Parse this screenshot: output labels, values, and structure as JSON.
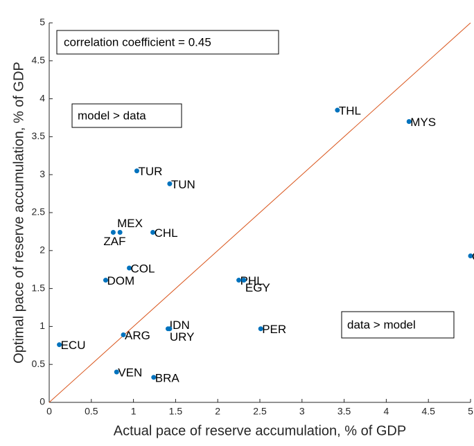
{
  "chart_data": {
    "type": "scatter",
    "xlabel": "Actual pace of reserve accumulation, % of GDP",
    "ylabel": "Optimal pace of reserve accumulation, % of GDP",
    "annotations": [
      "correlation coefficient = 0.45",
      "model > data",
      "data > model"
    ],
    "color": "#0072bd",
    "line_color": "#d95319",
    "labels": [
      "THL",
      "MYS",
      "C",
      "TUR",
      "TUN",
      "MEX",
      "ZAF",
      "CHL",
      "COL",
      "DOM",
      "PHL",
      "EGY",
      "IDN",
      "URY",
      "PER",
      "ARG",
      "ECU",
      "VEN",
      "BRA"
    ],
    "x": [
      3.42,
      4.27,
      5.0,
      1.04,
      1.43,
      0.84,
      0.76,
      1.23,
      0.95,
      0.67,
      2.25,
      2.31,
      1.41,
      1.43,
      2.51,
      0.88,
      0.12,
      0.8,
      1.24
    ],
    "values": [
      3.85,
      3.7,
      1.93,
      3.05,
      2.88,
      2.24,
      2.24,
      2.24,
      1.77,
      1.61,
      1.61,
      1.61,
      0.97,
      0.97,
      0.97,
      0.89,
      0.76,
      0.4,
      0.33
    ],
    "xlim": [
      0,
      5
    ],
    "ylim": [
      0,
      5
    ],
    "xticks": [
      0,
      0.5,
      1,
      1.5,
      2,
      2.5,
      3,
      3.5,
      4,
      4.5,
      5
    ],
    "yticks": [
      0,
      0.5,
      1,
      1.5,
      2,
      2.5,
      3,
      3.5,
      4,
      4.5,
      5
    ]
  }
}
